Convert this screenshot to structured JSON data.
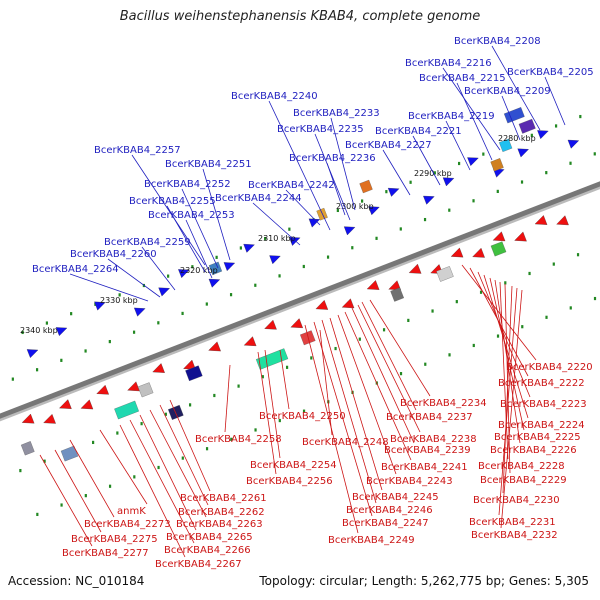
{
  "title": "Bacillus weihenstephanensis KBAB4, complete genome",
  "accession": "Accession: NC_010184",
  "summary": "Topology: circular; Length: 5,262,775 bp; Genes: 5,305",
  "colors": {
    "forward_gene": "#1010ee",
    "reverse_gene": "#ee1010",
    "forward_label": "#1f1fbf",
    "reverse_label": "#cc1515",
    "backbone": "#777777",
    "tick": "#228822"
  },
  "ticks": [
    "2280 kbp",
    "2290 kbp",
    "2300 kbp",
    "2310 kbp",
    "2320 kbp",
    "2330 kbp",
    "2340 kbp"
  ],
  "forward_labels": [
    "BcerKBAB4_2208",
    "BcerKBAB4_2216",
    "BcerKBAB4_2205",
    "BcerKBAB4_2215",
    "BcerKBAB4_2209",
    "BcerKBAB4_2240",
    "BcerKBAB4_2233",
    "BcerKBAB4_2219",
    "BcerKBAB4_2235",
    "BcerKBAB4_2221",
    "BcerKBAB4_2257",
    "BcerKBAB4_2227",
    "BcerKBAB4_2236",
    "BcerKBAB4_2251",
    "BcerKBAB4_2252",
    "BcerKBAB4_2242",
    "BcerKBAB4_2255",
    "BcerKBAB4_2244",
    "BcerKBAB4_2253",
    "BcerKBAB4_2259",
    "BcerKBAB4_2260",
    "BcerKBAB4_2264"
  ],
  "reverse_labels": [
    "BcerKBAB4_2220",
    "BcerKBAB4_2222",
    "BcerKBAB4_2223",
    "BcerKBAB4_2234",
    "BcerKBAB4_2250",
    "BcerKBAB4_2237",
    "BcerKBAB4_2224",
    "BcerKBAB4_2225",
    "BcerKBAB4_2258",
    "BcerKBAB4_2248",
    "BcerKBAB4_2238",
    "BcerKBAB4_2226",
    "BcerKBAB4_2239",
    "BcerKBAB4_2254",
    "BcerKBAB4_2228",
    "BcerKBAB4_2241",
    "BcerKBAB4_2229",
    "BcerKBAB4_2256",
    "BcerKBAB4_2243",
    "BcerKBAB4_2261",
    "BcerKBAB4_2245",
    "BcerKBAB4_2230",
    "anmK",
    "BcerKBAB4_2262",
    "BcerKBAB4_2246",
    "BcerKBAB4_2273",
    "BcerKBAB4_2263",
    "BcerKBAB4_2247",
    "BcerKBAB4_2231",
    "BcerKBAB4_2275",
    "BcerKBAB4_2265",
    "BcerKBAB4_2249",
    "BcerKBAB4_2232",
    "BcerKBAB4_2277",
    "BcerKBAB4_2266",
    "BcerKBAB4_2267"
  ]
}
